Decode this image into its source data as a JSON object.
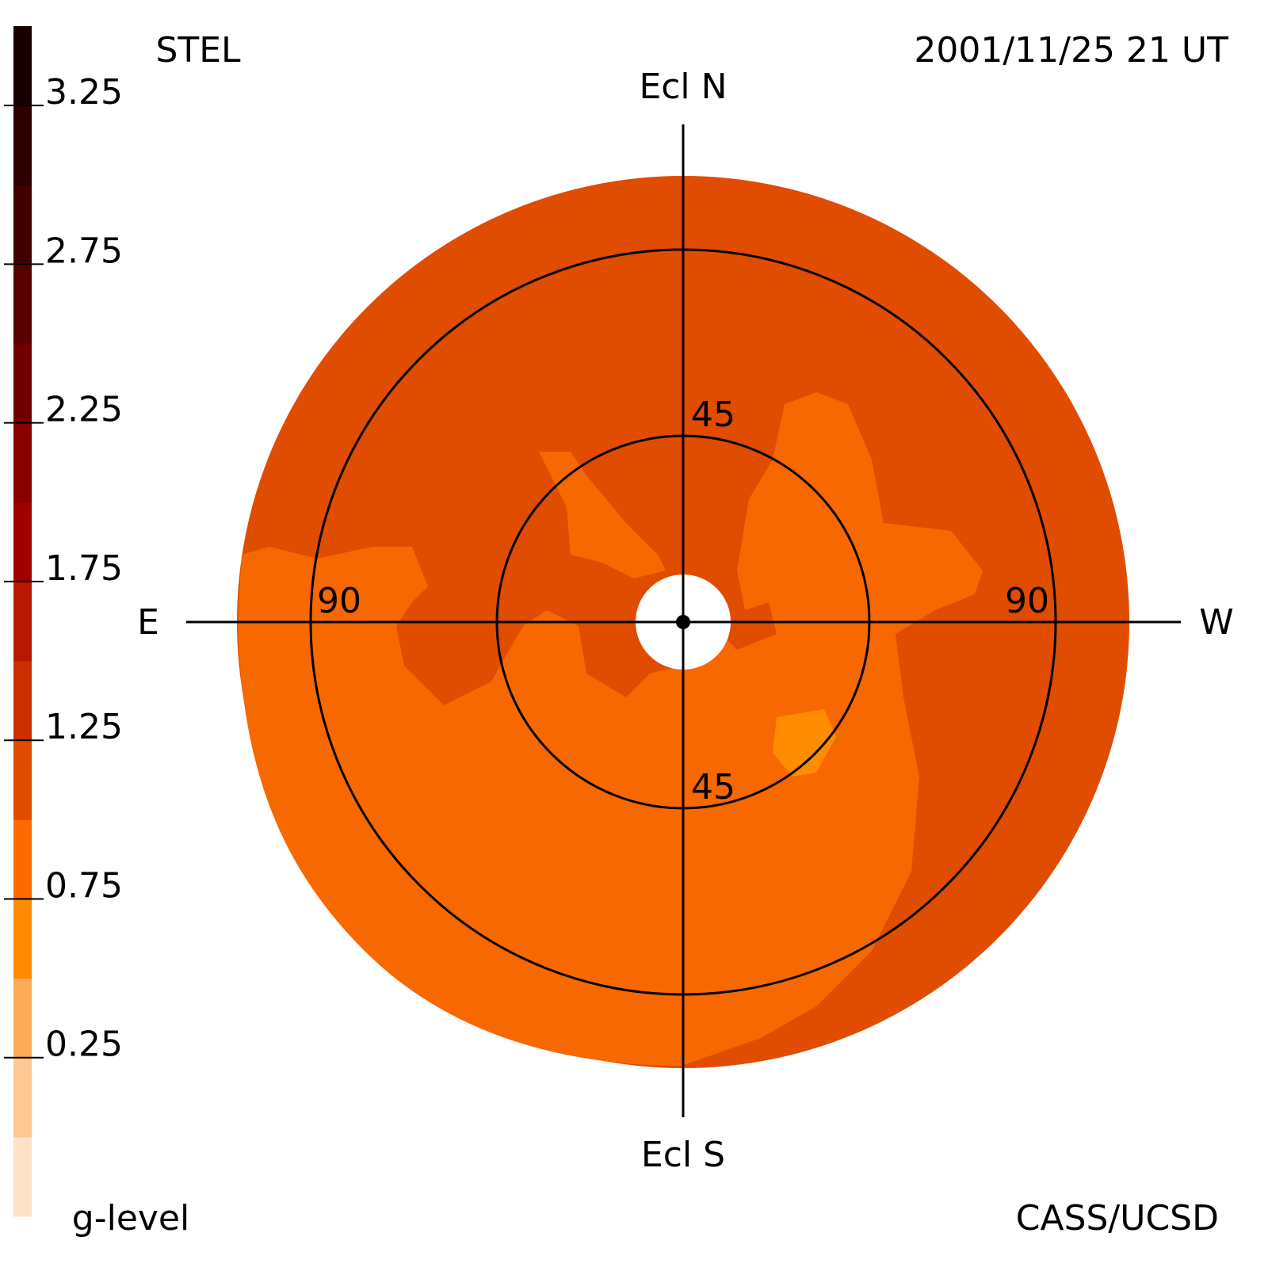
{
  "header": {
    "instrument": "STEL",
    "timestamp": "2001/11/25 21 UT"
  },
  "footer": {
    "colorbar_label": "g-level",
    "credit": "CASS/UCSD"
  },
  "map": {
    "north": "Ecl N",
    "south": "Ecl S",
    "east": "E",
    "west": "W",
    "rings": [
      45,
      90
    ]
  },
  "colorbar": {
    "lim": [
      -0.25,
      3.5
    ],
    "ticks": [
      3.25,
      2.75,
      2.25,
      1.75,
      1.25,
      0.75,
      0.25
    ],
    "colors": [
      "#fde2c8",
      "#fdc894",
      "#fdab58",
      "#ff8c00",
      "#fc6a00",
      "#e04c00",
      "#cc3000",
      "#b81800",
      "#a00000",
      "#880000",
      "#700000",
      "#560000",
      "#400000",
      "#2a0000",
      "#180000"
    ]
  }
}
